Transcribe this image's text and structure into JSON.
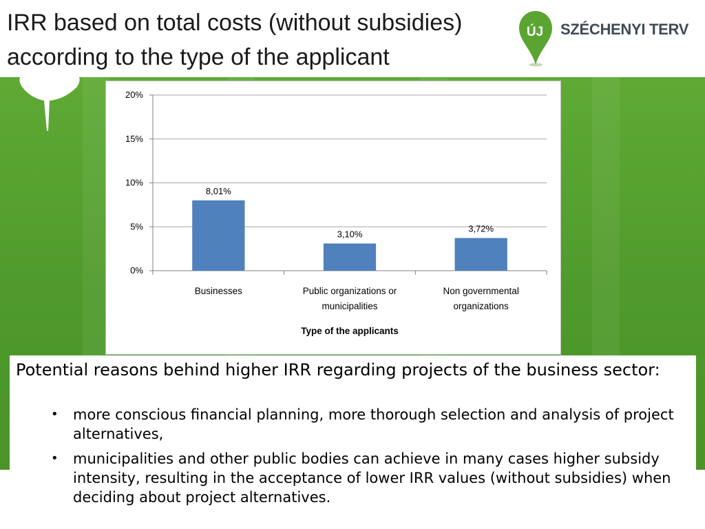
{
  "slide": {
    "title_line1": "IRR based on total costs (without subsidies)",
    "title_line2": "according to the type of the applicant"
  },
  "logo": {
    "mark_text": "ÚJ",
    "brand_text": "SZÉCHENYI TERV"
  },
  "colors": {
    "background_green": "#5aa532",
    "bar": "#4f81bd",
    "gridline": "#a6a6a6"
  },
  "chart_data": {
    "type": "bar",
    "categories": [
      [
        "Businesses"
      ],
      [
        "Public organizations  or",
        "municipalities"
      ],
      [
        "Non governmental",
        "organizations"
      ]
    ],
    "values": [
      8.01,
      3.1,
      3.72
    ],
    "data_labels": [
      "8,01%",
      "3,10%",
      "3,72%"
    ],
    "ylim": [
      0,
      20
    ],
    "yticks": [
      0,
      5,
      10,
      15,
      20
    ],
    "ytick_labels": [
      "0%",
      "5%",
      "10%",
      "15%",
      "20%"
    ],
    "xlabel": "Type of the applicants",
    "ylabel": "",
    "title": "",
    "grid": true,
    "legend": "none"
  },
  "notes": {
    "intro": "Potential reasons behind higher IRR regarding projects of the business sector:",
    "bullet_symbol": "•",
    "bullets": [
      "more conscious financial planning, more thorough selection and analysis of project alternatives,",
      "municipalities and other public bodies can achieve in many cases higher subsidy intensity, resulting in the acceptance of lower IRR values (without subsidies) when deciding about project alternatives."
    ]
  }
}
